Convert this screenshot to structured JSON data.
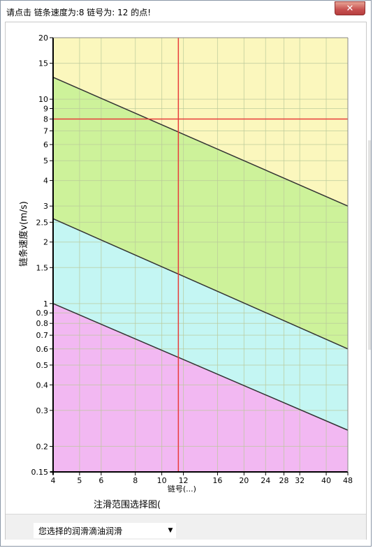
{
  "window": {
    "title": "请点击 链条速度为:8  链号为: 12 的点!",
    "close_icon": "close-icon"
  },
  "chart_data": {
    "type": "area",
    "x_scale": "log",
    "y_scale": "log",
    "xlim": [
      4,
      48
    ],
    "ylim": [
      0.15,
      20
    ],
    "x_ticks": [
      4,
      5,
      6,
      8,
      10,
      12,
      16,
      20,
      24,
      28,
      32,
      40,
      48
    ],
    "y_ticks": [
      0.15,
      0.2,
      0.3,
      0.4,
      0.5,
      0.6,
      0.7,
      0.8,
      0.9,
      1,
      1.5,
      2,
      2.5,
      3,
      4,
      5,
      6,
      7,
      8,
      9,
      10,
      15,
      20
    ],
    "x_tick_labels": [
      "4",
      "5",
      "6",
      "8",
      "10",
      "12",
      "16",
      "20",
      "24",
      "28",
      "32",
      "40",
      "48"
    ],
    "y_tick_labels": [
      "0.15",
      "0.2",
      "0.3",
      "0.4",
      "0.5",
      "0.6",
      "0.7",
      "0.8",
      "0.9",
      "1",
      "1.5",
      "2",
      "2.5",
      "3",
      "4",
      "5",
      "6",
      "7",
      "8",
      "9",
      "10",
      "15",
      "20"
    ],
    "ylabel": "链条速度v(m/s)",
    "xlabel": "链号(...)",
    "boundaries": [
      {
        "x": [
          4,
          48
        ],
        "y": [
          1.0,
          0.24
        ]
      },
      {
        "x": [
          4,
          48
        ],
        "y": [
          2.6,
          0.6
        ]
      },
      {
        "x": [
          4,
          48
        ],
        "y": [
          12.8,
          3.0
        ]
      }
    ],
    "region_colors": [
      "#f2b8f2",
      "#c4f6f3",
      "#cdf29a",
      "#fbf7bd"
    ],
    "selected_point": {
      "x": 11.5,
      "y": 8
    },
    "marker_color": "#e83c3c",
    "grid": true
  },
  "caption": "注滑范围选择图(",
  "selection": {
    "value": "您选择的润滑滴油润滑"
  }
}
